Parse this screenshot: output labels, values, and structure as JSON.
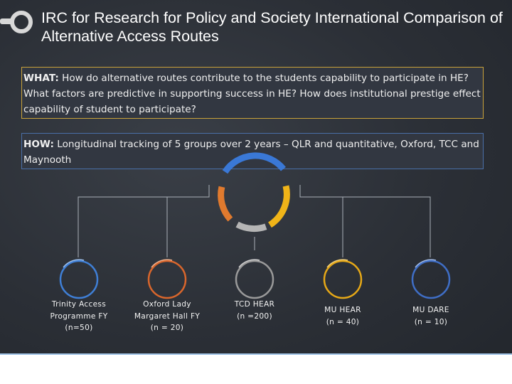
{
  "header": {
    "title": "IRC for Research for Policy and Society International Comparison of Alternative Access Routes"
  },
  "what_box": {
    "label": "WHAT:",
    "text": "How do alternative routes contribute to the students capability to participate in HE? What factors are predictive in supporting success in HE? How does institutional prestige effect capability of student to participate?"
  },
  "how_box": {
    "label": "HOW:",
    "text": "Longitudinal tracking of 5 groups over 2 years – QLR and quantitative, Oxford, TCC and Maynooth"
  },
  "nodes": [
    {
      "name": "Trinity Access Programme FY",
      "lines": [
        "Trinity Access",
        "Programme FY",
        "(n=50)"
      ],
      "color": "#3f7fd6"
    },
    {
      "name": "Oxford Lady Margaret Hall FY",
      "lines": [
        "Oxford Lady",
        "Margaret Hall FY",
        "(n = 20)"
      ],
      "color": "#d9662c"
    },
    {
      "name": "TCD HEAR",
      "lines": [
        "TCD HEAR",
        "(n =200)"
      ],
      "color": "#9a9a9a"
    },
    {
      "name": "MU HEAR",
      "lines": [
        "MU HEAR",
        "(n = 40)"
      ],
      "color": "#e6a817"
    },
    {
      "name": "MU DARE",
      "lines": [
        "MU DARE",
        "(n = 10)"
      ],
      "color": "#3f6ec6"
    }
  ],
  "colors": {
    "what_border": "#c9a23a",
    "how_border": "#4a6fa8",
    "connector": "#aab0b8",
    "footer_border": "#9fc3e6"
  }
}
